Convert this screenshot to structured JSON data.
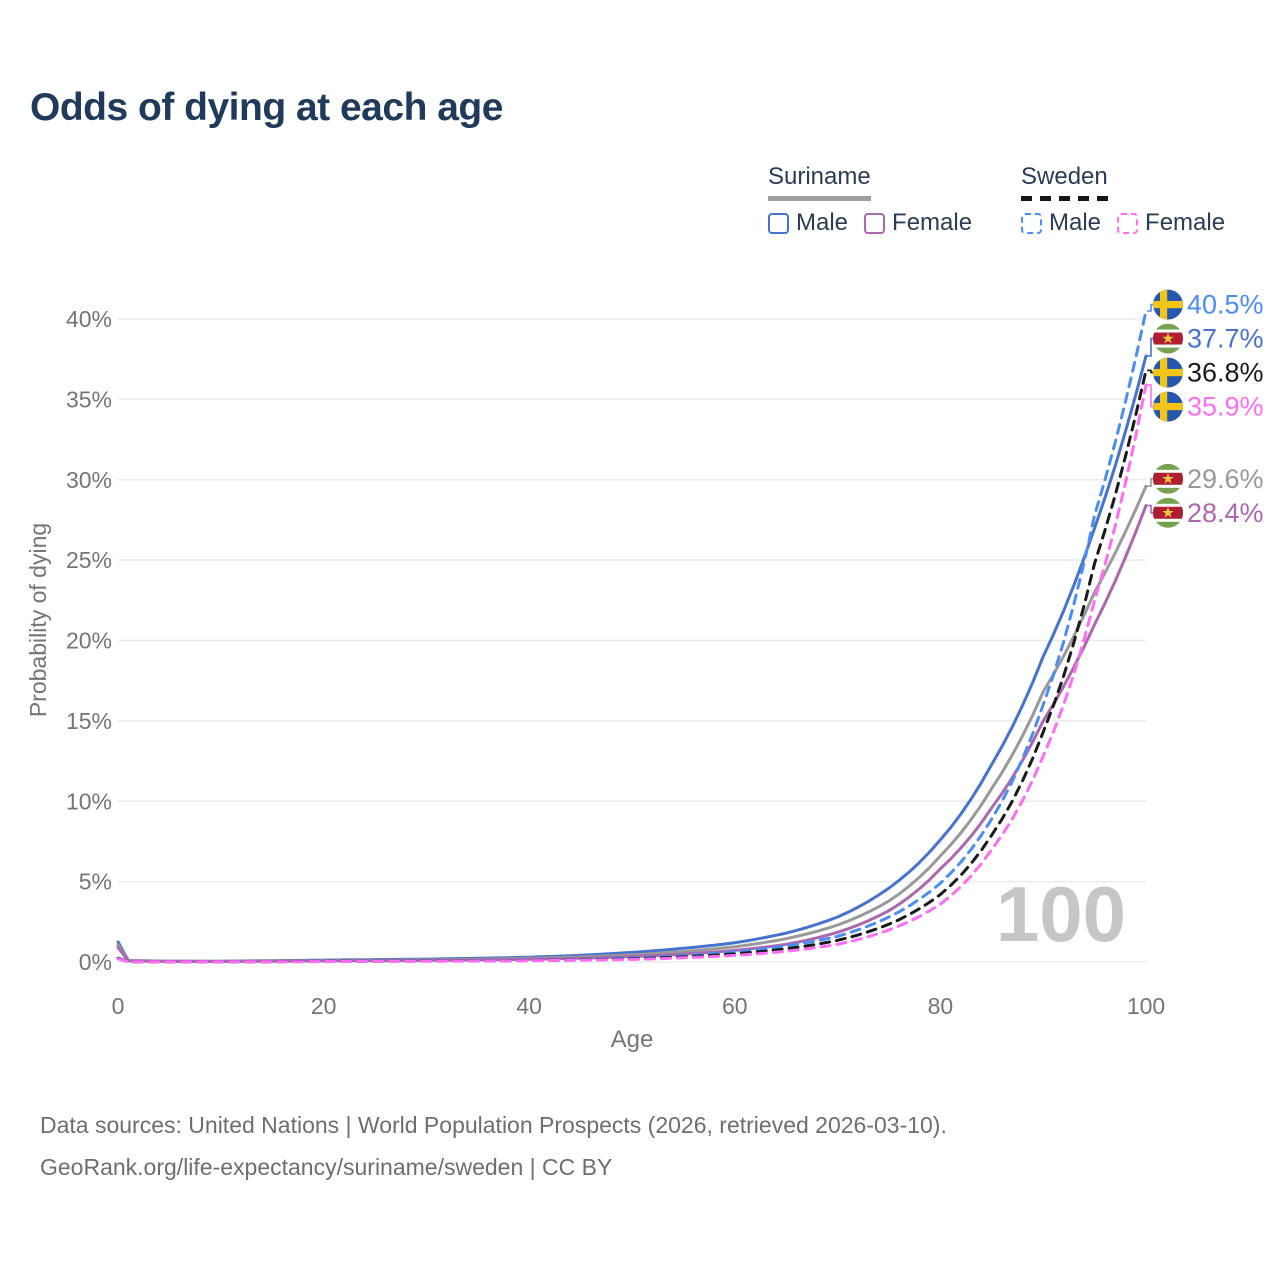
{
  "title": "Odds of dying at each age",
  "legend": {
    "groups": [
      {
        "name": "Suriname",
        "line_style": "solid",
        "line_color": "#9e9e9e",
        "items": [
          {
            "label": "Male",
            "color": "#4573cd",
            "dashed": false
          },
          {
            "label": "Female",
            "color": "#ab68ad",
            "dashed": false
          }
        ]
      },
      {
        "name": "Sweden",
        "line_style": "dashed",
        "line_color": "#161616",
        "items": [
          {
            "label": "Male",
            "color": "#4a8ef5",
            "dashed": true
          },
          {
            "label": "Female",
            "color": "#ff6ef2",
            "dashed": true
          }
        ]
      }
    ]
  },
  "chart_data": {
    "type": "line",
    "title": "Odds of dying at each age",
    "xlabel": "Age",
    "ylabel": "Probability of dying",
    "watermark_age": "100",
    "x_range": [
      0,
      100
    ],
    "y_range_percent": [
      0,
      40
    ],
    "grid": true,
    "x_ticks": [
      0,
      20,
      40,
      60,
      80,
      100
    ],
    "y_ticks": [
      {
        "v": 0,
        "label": "0%"
      },
      {
        "v": 5,
        "label": "5%"
      },
      {
        "v": 10,
        "label": "10%"
      },
      {
        "v": 15,
        "label": "15%"
      },
      {
        "v": 20,
        "label": "20%"
      },
      {
        "v": 25,
        "label": "25%"
      },
      {
        "v": 30,
        "label": "30%"
      },
      {
        "v": 35,
        "label": "35%"
      },
      {
        "v": 40,
        "label": "40%"
      }
    ],
    "ages": [
      0,
      1,
      5,
      10,
      15,
      20,
      25,
      30,
      35,
      40,
      45,
      50,
      55,
      60,
      65,
      70,
      75,
      80,
      85,
      90,
      95,
      100
    ],
    "series": [
      {
        "id": "suriname-male",
        "name": "Suriname — Male",
        "country": "Suriname",
        "flag": "suriname",
        "color": "#4573cd",
        "style": "solid",
        "end_label": "37.7%",
        "end_value": 37.7,
        "values": [
          1.25,
          0.09,
          0.05,
          0.05,
          0.08,
          0.12,
          0.15,
          0.18,
          0.23,
          0.3,
          0.42,
          0.6,
          0.85,
          1.2,
          1.8,
          2.8,
          4.6,
          7.6,
          12.3,
          19.0,
          27.0,
          37.7
        ]
      },
      {
        "id": "suriname-both",
        "name": "Suriname — Both sexes",
        "country": "Suriname",
        "flag": "suriname",
        "color": "#999999",
        "style": "solid",
        "end_label": "29.6%",
        "end_value": 29.6,
        "values": [
          1.05,
          0.08,
          0.04,
          0.04,
          0.06,
          0.09,
          0.11,
          0.13,
          0.17,
          0.23,
          0.32,
          0.45,
          0.65,
          0.95,
          1.45,
          2.3,
          3.8,
          6.6,
          10.8,
          16.8,
          23.0,
          29.6
        ]
      },
      {
        "id": "suriname-female",
        "name": "Suriname — Female",
        "country": "Suriname",
        "flag": "suriname",
        "color": "#ab68ad",
        "style": "solid",
        "end_label": "28.4%",
        "end_value": 28.4,
        "values": [
          0.9,
          0.07,
          0.04,
          0.03,
          0.05,
          0.07,
          0.08,
          0.1,
          0.13,
          0.17,
          0.24,
          0.34,
          0.49,
          0.72,
          1.1,
          1.85,
          3.2,
          5.8,
          9.6,
          15.0,
          21.0,
          28.4
        ]
      },
      {
        "id": "sweden-male",
        "name": "Sweden — Male",
        "country": "Sweden",
        "flag": "sweden",
        "color": "#4a8ef5",
        "style": "dashed",
        "end_label": "40.5%",
        "end_value": 40.5,
        "values": [
          0.25,
          0.02,
          0.01,
          0.01,
          0.02,
          0.05,
          0.06,
          0.07,
          0.08,
          0.11,
          0.16,
          0.25,
          0.4,
          0.63,
          1.0,
          1.6,
          2.8,
          4.9,
          8.9,
          16.0,
          27.8,
          40.5
        ]
      },
      {
        "id": "sweden-both",
        "name": "Sweden — Both sexes",
        "country": "Sweden",
        "flag": "sweden",
        "color": "#1a1a1a",
        "style": "dashed",
        "end_label": "36.8%",
        "end_value": 36.8,
        "values": [
          0.22,
          0.02,
          0.01,
          0.01,
          0.02,
          0.04,
          0.05,
          0.06,
          0.07,
          0.09,
          0.13,
          0.2,
          0.32,
          0.51,
          0.82,
          1.35,
          2.35,
          4.2,
          7.9,
          14.3,
          24.8,
          36.8
        ]
      },
      {
        "id": "sweden-female",
        "name": "Sweden — Female",
        "country": "Sweden",
        "flag": "sweden",
        "color": "#ff6ef2",
        "style": "dashed",
        "end_label": "35.9%",
        "end_value": 35.9,
        "values": [
          0.19,
          0.02,
          0.01,
          0.01,
          0.01,
          0.03,
          0.04,
          0.05,
          0.06,
          0.08,
          0.11,
          0.16,
          0.26,
          0.41,
          0.67,
          1.1,
          2.0,
          3.6,
          7.0,
          12.8,
          22.5,
          35.9
        ]
      }
    ]
  },
  "flags": {
    "sweden": {
      "blue": "#2457ad",
      "yellow": "#f3c517"
    },
    "suriname": {
      "green": "#77a351",
      "white": "#ffffff",
      "red": "#af1e33",
      "star": "#f2c93b"
    }
  },
  "colors": {
    "title": "#203a5c",
    "axis_text": "#757575",
    "gridline": "#ebebeb",
    "watermark": "#c6c6c6",
    "footer_text": "#6e6e6e"
  },
  "footer": {
    "line1": "Data sources: United Nations | World Population Prospects (2026, retrieved 2026-03-10).",
    "line2": "GeoRank.org/life-expectancy/suriname/sweden | CC BY"
  }
}
